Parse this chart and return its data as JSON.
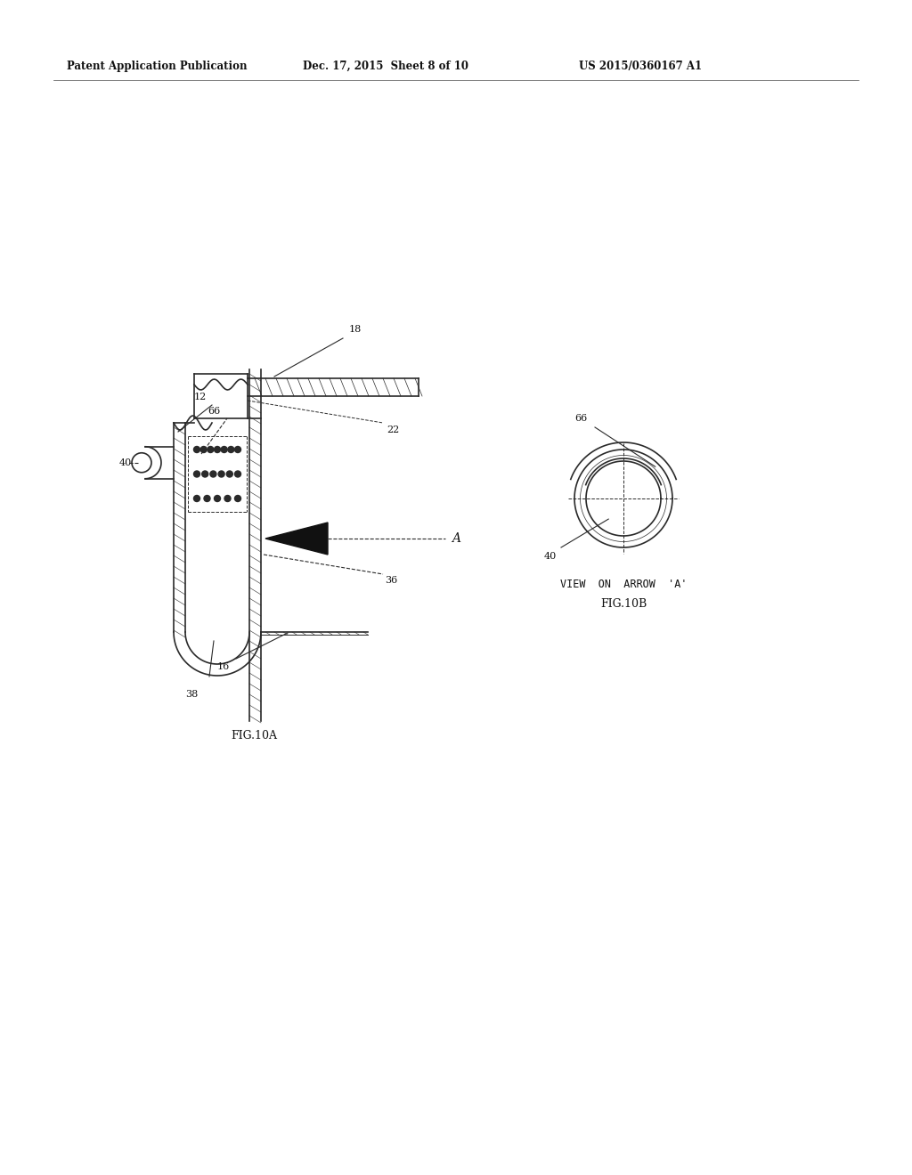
{
  "bg_color": "#ffffff",
  "header_text1": "Patent Application Publication",
  "header_text2": "Dec. 17, 2015  Sheet 8 of 10",
  "header_text3": "US 2015/0360167 A1",
  "fig10a_label": "FIG.10A",
  "fig10b_label": "FIG.10B",
  "view_label": "VIEW  ON  ARROW  'A'",
  "line_color": "#2a2a2a",
  "dot_color": "#2a2a2a",
  "hatch_color": "#555555"
}
